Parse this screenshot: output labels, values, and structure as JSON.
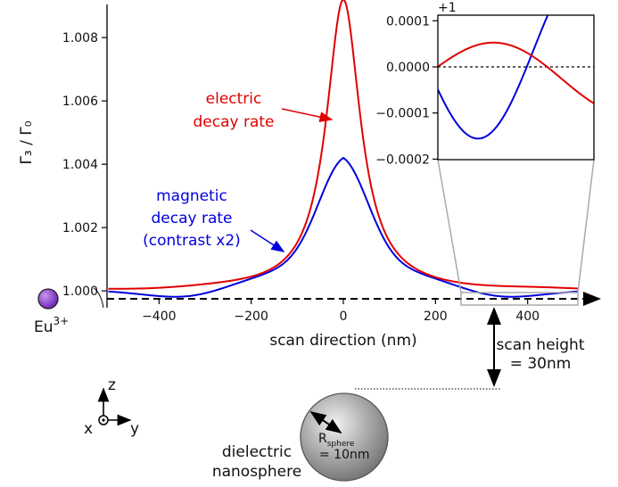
{
  "chart_data": {
    "type": "line",
    "ylabel": "Γ₃ / Γ₀",
    "xlabel": "scan direction (nm)",
    "xlim": [
      -520,
      520
    ],
    "ylim": [
      0.9995,
      1.0095
    ],
    "x_ticks": [
      "−400",
      "−200",
      "0",
      "200",
      "400"
    ],
    "y_ticks": [
      "1.000",
      "1.002",
      "1.004",
      "1.006",
      "1.008"
    ],
    "series": [
      {
        "color": "#e00000",
        "peak": 1.0092,
        "width_nm": 45
      },
      {
        "color": "#0000dd",
        "peak": 1.0041,
        "contrast": 2
      }
    ],
    "annotations": {
      "electric": [
        "electric",
        "decay rate"
      ],
      "magnetic": [
        "magnetic",
        "decay rate",
        "(contrast x2)"
      ]
    },
    "inset": {
      "offset_label": "+1",
      "x_range_nm": [
        260,
        500
      ],
      "y_ticks": [
        "0.0001",
        "0.0000",
        "−0.0001",
        "−0.0002"
      ],
      "ylim": [
        -0.00021,
        0.00011
      ]
    }
  },
  "emitter": {
    "label": "Eu",
    "superscript": "3+",
    "color": "#8a2be2"
  },
  "scan_height": {
    "line1": "scan height",
    "line2": "= 30nm"
  },
  "sphere": {
    "label_line1": "dielectric",
    "label_line2": "nanosphere",
    "radius_symbol": "R",
    "radius_sub": "sphere",
    "radius_value": "= 10nm"
  },
  "axes_triad": {
    "z": "z",
    "x": "x",
    "y": "y"
  }
}
